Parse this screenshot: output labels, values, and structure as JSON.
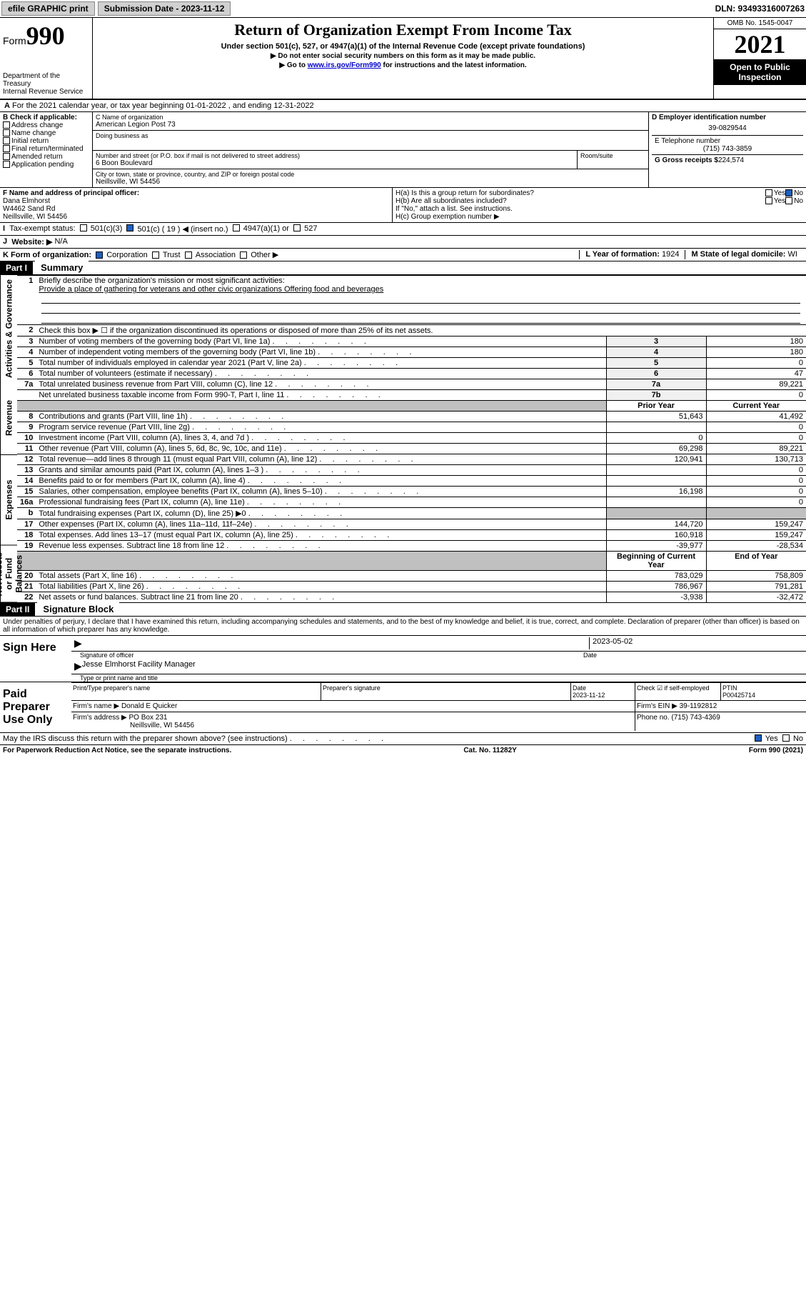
{
  "topbar": {
    "efile": "efile GRAPHIC print",
    "submission": "Submission Date - 2023-11-12",
    "dln": "DLN: 93493316007263"
  },
  "header": {
    "form": "Form",
    "form_num": "990",
    "dept": "Department of the Treasury",
    "irs": "Internal Revenue Service",
    "title": "Return of Organization Exempt From Income Tax",
    "sub1": "Under section 501(c), 527, or 4947(a)(1) of the Internal Revenue Code (except private foundations)",
    "sub2": "▶ Do not enter social security numbers on this form as it may be made public.",
    "sub3_pre": "▶ Go to ",
    "sub3_link": "www.irs.gov/Form990",
    "sub3_post": " for instructions and the latest information.",
    "omb": "OMB No. 1545-0047",
    "year": "2021",
    "open": "Open to Public Inspection"
  },
  "rowA": "For the 2021 calendar year, or tax year beginning 01-01-2022   , and ending 12-31-2022",
  "checkB": {
    "label": "B Check if applicable:",
    "addr": "Address change",
    "name": "Name change",
    "init": "Initial return",
    "final": "Final return/terminated",
    "amend": "Amended return",
    "app": "Application pending"
  },
  "colC": {
    "name_label": "C Name of organization",
    "name": "American Legion Post 73",
    "dba": "Doing business as",
    "addr_label": "Number and street (or P.O. box if mail is not delivered to street address)",
    "room": "Room/suite",
    "addr": "6 Boon Boulevard",
    "city_label": "City or town, state or province, country, and ZIP or foreign postal code",
    "city": "Neillsville, WI  54456"
  },
  "colD": {
    "ein_label": "D Employer identification number",
    "ein": "39-0829544",
    "tel_label": "E Telephone number",
    "tel": "(715) 743-3859",
    "gross_label": "G Gross receipts $",
    "gross": "224,574"
  },
  "rowF": {
    "label": "F  Name and address of principal officer:",
    "name": "Dana Elmhorst",
    "addr1": "W4462 Sand Rd",
    "addr2": "Neillsville, WI  54456"
  },
  "rowH": {
    "ha": "H(a)  Is this a group return for subordinates?",
    "hb": "H(b)  Are all subordinates included?",
    "hb_note": "If \"No,\" attach a list. See instructions.",
    "hc": "H(c)  Group exemption number ▶",
    "yes": "Yes",
    "no": "No"
  },
  "rowI": {
    "label": "Tax-exempt status:",
    "c3": "501(c)(3)",
    "c19": "501(c) ( 19 ) ◀ (insert no.)",
    "c4947": "4947(a)(1) or",
    "c527": "527"
  },
  "rowJ": {
    "label": "Website: ▶",
    "val": "N/A"
  },
  "rowK": {
    "label": "K Form of organization:",
    "corp": "Corporation",
    "trust": "Trust",
    "assoc": "Association",
    "other": "Other ▶"
  },
  "rowL": {
    "label": "L Year of formation:",
    "val": "1924"
  },
  "rowM": {
    "label": "M State of legal domicile:",
    "val": "WI"
  },
  "part1": {
    "header": "Part I",
    "title": "Summary",
    "sections": {
      "gov": "Activities & Governance",
      "rev": "Revenue",
      "exp": "Expenses",
      "net": "Net Assets or Fund Balances"
    },
    "mission_label": "Briefly describe the organization's mission or most significant activities:",
    "mission": "Provide a place of gathering for veterans and other civic organizations Offering food and beverages",
    "line2": "Check this box ▶ ☐  if the organization discontinued its operations or disposed of more than 25% of its net assets.",
    "rows_gov": [
      {
        "n": "3",
        "t": "Number of voting members of the governing body (Part VI, line 1a)",
        "ln": "3",
        "v": "180"
      },
      {
        "n": "4",
        "t": "Number of independent voting members of the governing body (Part VI, line 1b)",
        "ln": "4",
        "v": "180"
      },
      {
        "n": "5",
        "t": "Total number of individuals employed in calendar year 2021 (Part V, line 2a)",
        "ln": "5",
        "v": "0"
      },
      {
        "n": "6",
        "t": "Total number of volunteers (estimate if necessary)",
        "ln": "6",
        "v": "47"
      },
      {
        "n": "7a",
        "t": "Total unrelated business revenue from Part VIII, column (C), line 12",
        "ln": "7a",
        "v": "89,221"
      },
      {
        "n": "",
        "t": "Net unrelated business taxable income from Form 990-T, Part I, line 11",
        "ln": "7b",
        "v": "0"
      }
    ],
    "col_prior": "Prior Year",
    "col_curr": "Current Year",
    "rows_rev": [
      {
        "n": "8",
        "t": "Contributions and grants (Part VIII, line 1h)",
        "p": "51,643",
        "c": "41,492"
      },
      {
        "n": "9",
        "t": "Program service revenue (Part VIII, line 2g)",
        "p": "",
        "c": "0"
      },
      {
        "n": "10",
        "t": "Investment income (Part VIII, column (A), lines 3, 4, and 7d )",
        "p": "0",
        "c": "0"
      },
      {
        "n": "11",
        "t": "Other revenue (Part VIII, column (A), lines 5, 6d, 8c, 9c, 10c, and 11e)",
        "p": "69,298",
        "c": "89,221"
      },
      {
        "n": "12",
        "t": "Total revenue—add lines 8 through 11 (must equal Part VIII, column (A), line 12)",
        "p": "120,941",
        "c": "130,713"
      }
    ],
    "rows_exp": [
      {
        "n": "13",
        "t": "Grants and similar amounts paid (Part IX, column (A), lines 1–3 )",
        "p": "",
        "c": "0"
      },
      {
        "n": "14",
        "t": "Benefits paid to or for members (Part IX, column (A), line 4)",
        "p": "",
        "c": "0"
      },
      {
        "n": "15",
        "t": "Salaries, other compensation, employee benefits (Part IX, column (A), lines 5–10)",
        "p": "16,198",
        "c": "0"
      },
      {
        "n": "16a",
        "t": "Professional fundraising fees (Part IX, column (A), line 11e)",
        "p": "",
        "c": "0"
      },
      {
        "n": "b",
        "t": "Total fundraising expenses (Part IX, column (D), line 25) ▶0",
        "p": "gray",
        "c": "gray"
      },
      {
        "n": "17",
        "t": "Other expenses (Part IX, column (A), lines 11a–11d, 11f–24e)",
        "p": "144,720",
        "c": "159,247"
      },
      {
        "n": "18",
        "t": "Total expenses. Add lines 13–17 (must equal Part IX, column (A), line 25)",
        "p": "160,918",
        "c": "159,247"
      },
      {
        "n": "19",
        "t": "Revenue less expenses. Subtract line 18 from line 12",
        "p": "-39,977",
        "c": "-28,534"
      }
    ],
    "col_begin": "Beginning of Current Year",
    "col_end": "End of Year",
    "rows_net": [
      {
        "n": "20",
        "t": "Total assets (Part X, line 16)",
        "p": "783,029",
        "c": "758,809"
      },
      {
        "n": "21",
        "t": "Total liabilities (Part X, line 26)",
        "p": "786,967",
        "c": "791,281"
      },
      {
        "n": "22",
        "t": "Net assets or fund balances. Subtract line 21 from line 20",
        "p": "-3,938",
        "c": "-32,472"
      }
    ]
  },
  "part2": {
    "header": "Part II",
    "title": "Signature Block",
    "perjury": "Under penalties of perjury, I declare that I have examined this return, including accompanying schedules and statements, and to the best of my knowledge and belief, it is true, correct, and complete. Declaration of preparer (other than officer) is based on all information of which preparer has any knowledge.",
    "sign_here": "Sign Here",
    "sig_officer": "Signature of officer",
    "date": "Date",
    "sig_date": "2023-05-02",
    "officer_name": "Jesse Elmhorst Facility Manager",
    "type_name": "Type or print name and title",
    "paid": "Paid Preparer Use Only",
    "prep_name": "Print/Type preparer's name",
    "prep_sig": "Preparer's signature",
    "prep_date_label": "Date",
    "prep_date": "2023-11-12",
    "check_self": "Check ☑ if self-employed",
    "ptin_label": "PTIN",
    "ptin": "P00425714",
    "firm_name_label": "Firm's name    ▶",
    "firm_name": "Donald E Quicker",
    "firm_ein_label": "Firm's EIN ▶",
    "firm_ein": "39-1192812",
    "firm_addr_label": "Firm's address ▶",
    "firm_addr1": "PO Box 231",
    "firm_addr2": "Neillsville, WI  54456",
    "firm_phone_label": "Phone no.",
    "firm_phone": "(715) 743-4369",
    "may_irs": "May the IRS discuss this return with the preparer shown above? (see instructions)",
    "yes": "Yes",
    "no": "No"
  },
  "footer": {
    "paperwork": "For Paperwork Reduction Act Notice, see the separate instructions.",
    "cat": "Cat. No. 11282Y",
    "form": "Form 990 (2021)"
  }
}
